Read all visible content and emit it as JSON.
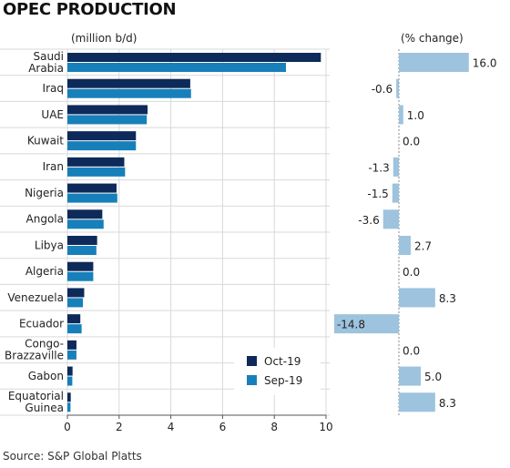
{
  "title": "OPEC PRODUCTION",
  "source": "Source: S&P Global Platts",
  "colors": {
    "oct": "#0d2a5a",
    "sep": "#1780ba",
    "pct": "#9dc3de",
    "grid": "#d9d9d9",
    "axis": "#555555"
  },
  "chart_data": [
    {
      "type": "bar",
      "orientation": "horizontal",
      "unit_label": "(million b/d)",
      "categories": [
        [
          "Saudi",
          "Arabia"
        ],
        [
          "Iraq"
        ],
        [
          "UAE"
        ],
        [
          "Kuwait"
        ],
        [
          "Iran"
        ],
        [
          "Nigeria"
        ],
        [
          "Angola"
        ],
        [
          "Libya"
        ],
        [
          "Algeria"
        ],
        [
          "Venezuela"
        ],
        [
          "Ecuador"
        ],
        [
          "Congo-",
          "Brazzaville"
        ],
        [
          "Gabon"
        ],
        [
          "Equatorial",
          "Guinea"
        ]
      ],
      "series": [
        {
          "name": "Oct-19",
          "values": [
            9.8,
            4.75,
            3.1,
            2.65,
            2.2,
            1.9,
            1.35,
            1.15,
            1.0,
            0.65,
            0.5,
            0.35,
            0.2,
            0.13
          ]
        },
        {
          "name": "Sep-19",
          "values": [
            8.45,
            4.78,
            3.07,
            2.65,
            2.23,
            1.93,
            1.4,
            1.12,
            1.0,
            0.6,
            0.55,
            0.35,
            0.19,
            0.12
          ]
        }
      ],
      "xlim": [
        0,
        10
      ],
      "xticks": [
        "0",
        "2",
        "4",
        "6",
        "8",
        "10"
      ],
      "grid": true,
      "legend": "bottom-right"
    },
    {
      "type": "bar",
      "orientation": "horizontal",
      "unit_label": "(% change)",
      "values": [
        16.0,
        -0.6,
        1.0,
        0.0,
        -1.3,
        -1.5,
        -3.6,
        2.7,
        0.0,
        8.3,
        -14.8,
        0.0,
        5.0,
        8.3
      ],
      "labels": [
        "16.0",
        "-0.6",
        "1.0",
        "0.0",
        "-1.3",
        "-1.5",
        "-3.6",
        "2.7",
        "0.0",
        "8.3",
        "-14.8",
        "0.0",
        "5.0",
        "8.3"
      ],
      "xlim": [
        -15,
        16
      ]
    }
  ]
}
